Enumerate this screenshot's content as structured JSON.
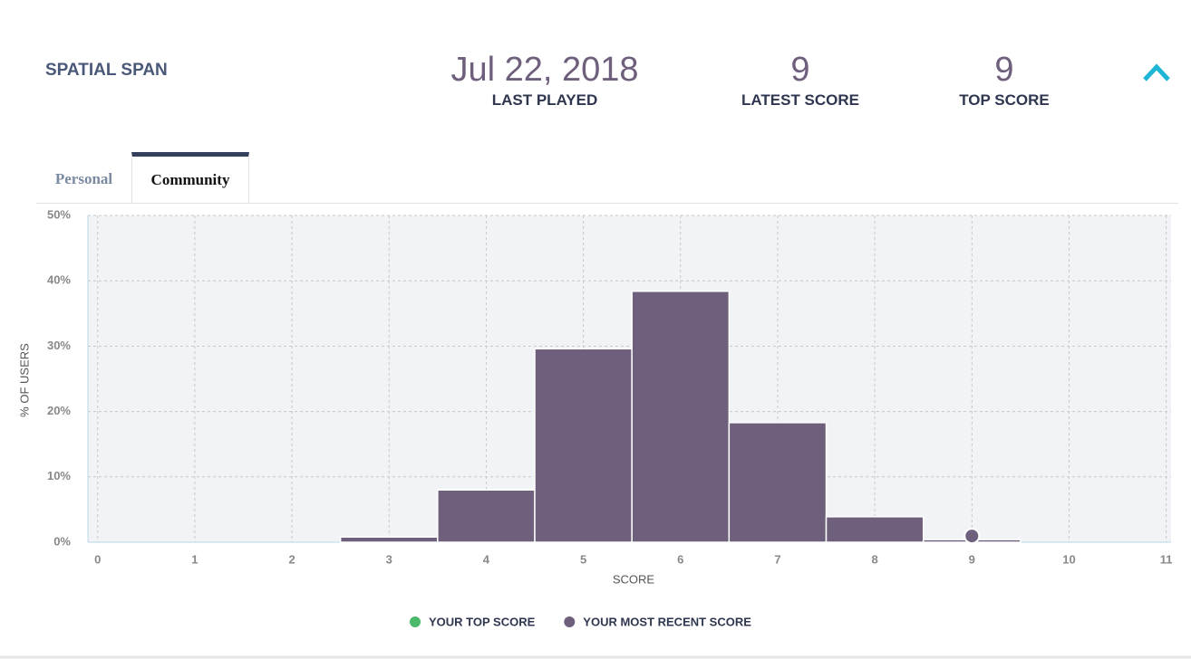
{
  "header": {
    "title": "SPATIAL SPAN",
    "stats": [
      {
        "value": "Jul 22, 2018",
        "label": "LAST PLAYED"
      },
      {
        "value": "9",
        "label": "LATEST SCORE"
      },
      {
        "value": "9",
        "label": "TOP SCORE"
      }
    ]
  },
  "tabs": [
    {
      "label": "Personal",
      "active": false
    },
    {
      "label": "Community",
      "active": true
    }
  ],
  "chart_data": {
    "type": "histogram",
    "x_label": "SCORE",
    "y_label": "% OF USERS",
    "bins": [
      2.5,
      3.5,
      4.5,
      5.5,
      6.5,
      7.5,
      8.5,
      9.5
    ],
    "values": [
      0.8,
      8.0,
      29.6,
      38.4,
      18.3,
      3.9,
      0.4
    ],
    "color": "#6e5f7c",
    "xlim": [
      -0.1,
      11.05
    ],
    "xticks": [
      0,
      1,
      2,
      3,
      4,
      5,
      6,
      7,
      8,
      9,
      10,
      11
    ],
    "ylim": [
      0,
      50
    ],
    "yticks": [
      {
        "value": 0,
        "label": "0%"
      },
      {
        "value": 10,
        "label": "10%"
      },
      {
        "value": 20,
        "label": "20%"
      },
      {
        "value": 30,
        "label": "30%"
      },
      {
        "value": 40,
        "label": "40%"
      },
      {
        "value": 50,
        "label": "50%"
      }
    ],
    "grid": true,
    "legend": [
      {
        "name": "YOUR TOP SCORE",
        "color": "#4cb86a"
      },
      {
        "name": "YOUR MOST RECENT SCORE",
        "color": "#6e5f7c"
      }
    ],
    "recent_marker": {
      "x": 9,
      "y": 0.4
    }
  }
}
